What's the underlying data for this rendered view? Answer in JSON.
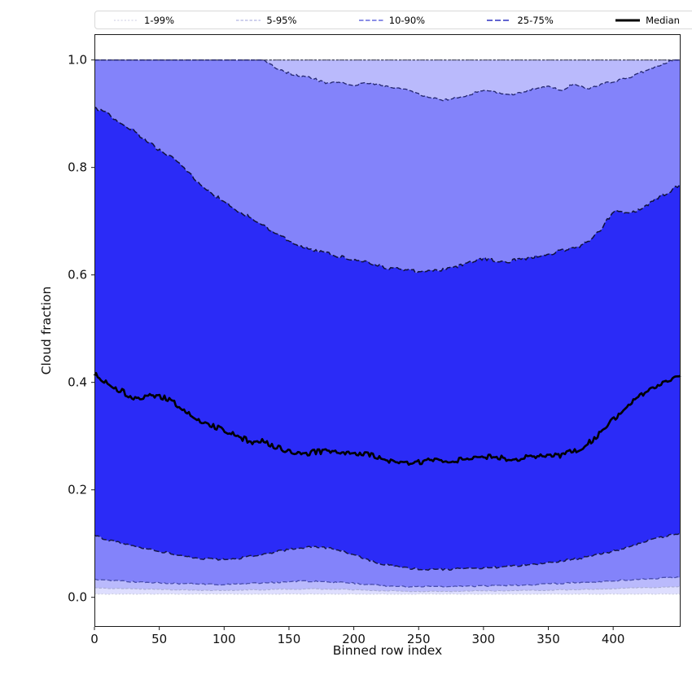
{
  "figure": {
    "background": "#ffffff",
    "legend": {
      "entries": [
        {
          "label": "1-99%",
          "color": "#d3d4e6",
          "dash": "2,2.3",
          "width": 1.2
        },
        {
          "label": "5-95%",
          "color": "#b0b3e2",
          "dash": "3.5,2",
          "width": 1.2
        },
        {
          "label": "10-90%",
          "color": "#6468dd",
          "dash": "5.5,2.5",
          "width": 1.4
        },
        {
          "label": "25-75%",
          "color": "#2e32c0",
          "dash": "7,3",
          "width": 1.6
        },
        {
          "label": "Median",
          "color": "#000000",
          "dash": "",
          "width": 3
        }
      ]
    }
  },
  "chart_data": {
    "type": "area",
    "subtype": "percentile-band-fan-chart",
    "title": "",
    "xlabel": "Binned row index",
    "ylabel": "Cloud fraction",
    "xlim": [
      0,
      452
    ],
    "ylim": [
      -0.055,
      1.048
    ],
    "x_ticks": [
      0,
      50,
      100,
      150,
      200,
      250,
      300,
      350,
      400
    ],
    "y_ticks": [
      0.0,
      0.2,
      0.4,
      0.6,
      0.8,
      1.0
    ],
    "y_tick_labels": [
      "0.0",
      "0.2",
      "0.4",
      "0.6",
      "0.8",
      "1.0"
    ],
    "grid": false,
    "legend_position": "top-horizontal",
    "fill_color": "#0202f5",
    "x": [
      0,
      10,
      20,
      30,
      40,
      50,
      60,
      70,
      80,
      90,
      100,
      110,
      120,
      130,
      140,
      150,
      160,
      170,
      180,
      190,
      200,
      210,
      220,
      230,
      240,
      250,
      260,
      270,
      280,
      290,
      300,
      310,
      320,
      330,
      340,
      350,
      360,
      370,
      380,
      390,
      400,
      410,
      420,
      430,
      440,
      450,
      452
    ],
    "series": [
      {
        "name": "p1_low",
        "values": [
          0.006,
          0.006,
          0.006,
          0.006,
          0.006,
          0.006,
          0.006,
          0.006,
          0.006,
          0.006,
          0.006,
          0.006,
          0.006,
          0.006,
          0.006,
          0.006,
          0.006,
          0.006,
          0.006,
          0.006,
          0.006,
          0.006,
          0.006,
          0.006,
          0.006,
          0.006,
          0.006,
          0.006,
          0.006,
          0.006,
          0.006,
          0.006,
          0.006,
          0.006,
          0.006,
          0.006,
          0.006,
          0.006,
          0.006,
          0.006,
          0.006,
          0.006,
          0.006,
          0.006,
          0.006,
          0.006,
          0.006
        ]
      },
      {
        "name": "p5_low",
        "values": [
          0.018,
          0.017,
          0.016,
          0.016,
          0.015,
          0.015,
          0.014,
          0.014,
          0.013,
          0.013,
          0.013,
          0.013,
          0.014,
          0.014,
          0.015,
          0.015,
          0.015,
          0.016,
          0.015,
          0.015,
          0.014,
          0.013,
          0.012,
          0.012,
          0.011,
          0.011,
          0.011,
          0.011,
          0.011,
          0.012,
          0.012,
          0.012,
          0.012,
          0.013,
          0.013,
          0.013,
          0.014,
          0.014,
          0.015,
          0.015,
          0.016,
          0.017,
          0.018,
          0.018,
          0.019,
          0.02,
          0.02
        ]
      },
      {
        "name": "p10_low",
        "values": [
          0.034,
          0.032,
          0.03,
          0.029,
          0.028,
          0.027,
          0.026,
          0.025,
          0.025,
          0.024,
          0.024,
          0.025,
          0.026,
          0.027,
          0.028,
          0.029,
          0.03,
          0.03,
          0.029,
          0.028,
          0.026,
          0.024,
          0.022,
          0.021,
          0.02,
          0.02,
          0.02,
          0.02,
          0.02,
          0.021,
          0.021,
          0.022,
          0.022,
          0.023,
          0.024,
          0.025,
          0.026,
          0.027,
          0.028,
          0.029,
          0.031,
          0.032,
          0.034,
          0.035,
          0.036,
          0.037,
          0.037
        ]
      },
      {
        "name": "p25_low",
        "values": [
          0.115,
          0.107,
          0.101,
          0.096,
          0.091,
          0.086,
          0.081,
          0.077,
          0.073,
          0.071,
          0.07,
          0.072,
          0.076,
          0.08,
          0.085,
          0.089,
          0.092,
          0.094,
          0.092,
          0.087,
          0.079,
          0.07,
          0.063,
          0.058,
          0.055,
          0.053,
          0.052,
          0.052,
          0.053,
          0.054,
          0.055,
          0.056,
          0.058,
          0.06,
          0.062,
          0.065,
          0.068,
          0.071,
          0.075,
          0.08,
          0.086,
          0.092,
          0.1,
          0.108,
          0.114,
          0.119,
          0.12
        ]
      },
      {
        "name": "median",
        "values": [
          0.415,
          0.4,
          0.385,
          0.37,
          0.375,
          0.375,
          0.365,
          0.345,
          0.33,
          0.32,
          0.31,
          0.3,
          0.29,
          0.29,
          0.28,
          0.272,
          0.267,
          0.27,
          0.272,
          0.268,
          0.27,
          0.266,
          0.26,
          0.252,
          0.25,
          0.252,
          0.255,
          0.253,
          0.256,
          0.26,
          0.262,
          0.26,
          0.257,
          0.26,
          0.264,
          0.261,
          0.265,
          0.272,
          0.285,
          0.305,
          0.33,
          0.355,
          0.375,
          0.39,
          0.4,
          0.408,
          0.41
        ]
      },
      {
        "name": "p75_high",
        "values": [
          0.91,
          0.9,
          0.885,
          0.868,
          0.85,
          0.833,
          0.818,
          0.795,
          0.773,
          0.752,
          0.737,
          0.72,
          0.707,
          0.692,
          0.678,
          0.663,
          0.652,
          0.645,
          0.64,
          0.634,
          0.627,
          0.624,
          0.616,
          0.611,
          0.61,
          0.606,
          0.61,
          0.609,
          0.615,
          0.624,
          0.63,
          0.626,
          0.625,
          0.63,
          0.634,
          0.639,
          0.645,
          0.65,
          0.66,
          0.682,
          0.718,
          0.714,
          0.72,
          0.736,
          0.75,
          0.765,
          0.77
        ]
      },
      {
        "name": "p90_high",
        "values": [
          1.0,
          1.0,
          1.0,
          1.0,
          1.0,
          1.0,
          1.0,
          1.0,
          1.0,
          1.0,
          1.0,
          1.0,
          1.0,
          1.0,
          0.985,
          0.975,
          0.97,
          0.965,
          0.955,
          0.96,
          0.953,
          0.958,
          0.953,
          0.949,
          0.944,
          0.936,
          0.93,
          0.925,
          0.93,
          0.936,
          0.944,
          0.94,
          0.935,
          0.94,
          0.946,
          0.95,
          0.944,
          0.956,
          0.945,
          0.954,
          0.96,
          0.965,
          0.975,
          0.985,
          0.995,
          1.0,
          1.0
        ]
      },
      {
        "name": "p95_high",
        "values": [
          1.0,
          1.0,
          1.0,
          1.0,
          1.0,
          1.0,
          1.0,
          1.0,
          1.0,
          1.0,
          1.0,
          1.0,
          1.0,
          1.0,
          1.0,
          1.0,
          1.0,
          1.0,
          1.0,
          1.0,
          1.0,
          1.0,
          1.0,
          1.0,
          1.0,
          1.0,
          1.0,
          1.0,
          1.0,
          1.0,
          1.0,
          1.0,
          1.0,
          1.0,
          1.0,
          1.0,
          1.0,
          1.0,
          1.0,
          1.0,
          1.0,
          1.0,
          1.0,
          1.0,
          1.0,
          1.0,
          1.0
        ]
      },
      {
        "name": "p99_high",
        "values": [
          1.0,
          1.0,
          1.0,
          1.0,
          1.0,
          1.0,
          1.0,
          1.0,
          1.0,
          1.0,
          1.0,
          1.0,
          1.0,
          1.0,
          1.0,
          1.0,
          1.0,
          1.0,
          1.0,
          1.0,
          1.0,
          1.0,
          1.0,
          1.0,
          1.0,
          1.0,
          1.0,
          1.0,
          1.0,
          1.0,
          1.0,
          1.0,
          1.0,
          1.0,
          1.0,
          1.0,
          1.0,
          1.0,
          1.0,
          1.0,
          1.0,
          1.0,
          1.0,
          1.0,
          1.0,
          1.0,
          1.0
        ]
      }
    ],
    "bands": [
      {
        "label": "1-99%",
        "low": "p1_low",
        "high": "p99_high",
        "fill_opacity": 0.13,
        "line_color_low": "#c9cbdd",
        "line_color_high": "#53556a",
        "dash": "2,2.3",
        "line_width": 1.1,
        "jitter": 0.0008
      },
      {
        "label": "5-95%",
        "low": "p5_low",
        "high": "p95_high",
        "fill_opacity": 0.16,
        "line_color_low": "#a9acd4",
        "line_color_high": "#41445f",
        "dash": "3.5,2",
        "line_width": 1.1,
        "jitter": 0.001
      },
      {
        "label": "10-90%",
        "low": "p10_low",
        "high": "p90_high",
        "fill_opacity": 0.3,
        "line_color_low": "#4a4fae",
        "line_color_high": "#23266f",
        "dash": "5.5,2.5",
        "line_width": 1.3,
        "jitter": 0.002
      },
      {
        "label": "25-75%",
        "low": "p25_low",
        "high": "p75_high",
        "fill_opacity": 0.68,
        "line_color_low": "#16184a",
        "line_color_high": "#10123c",
        "dash": "7,3",
        "line_width": 1.5,
        "jitter": 0.003
      }
    ],
    "median_line": {
      "series": "median",
      "color": "#000000",
      "width": 2.6,
      "jitter": 0.005
    }
  }
}
